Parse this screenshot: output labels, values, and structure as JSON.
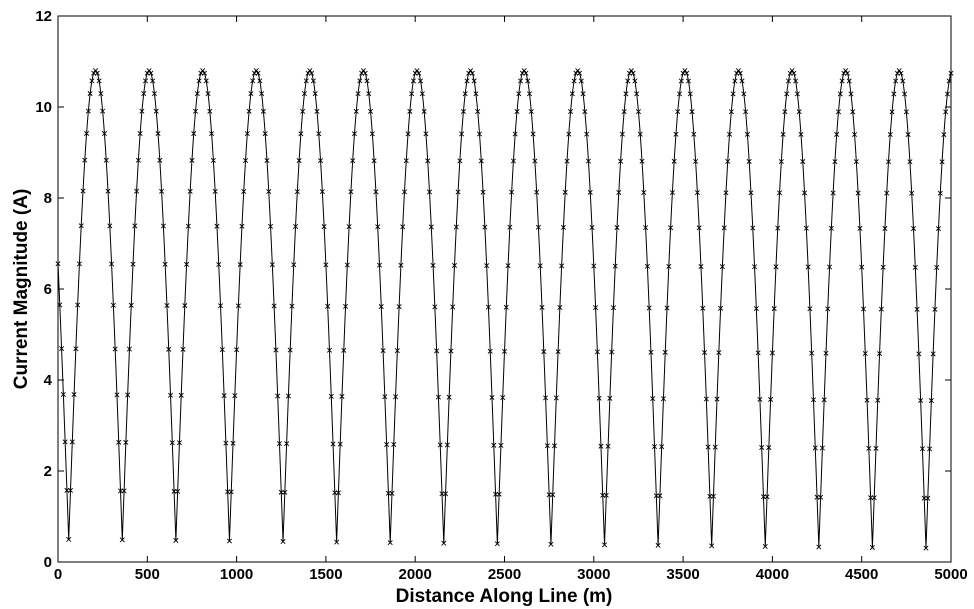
{
  "chart_data": {
    "type": "line",
    "title": "",
    "xlabel": "Distance Along Line (m)",
    "ylabel": "Current Magnitude (A)",
    "xlim": [
      0,
      5000
    ],
    "ylim": [
      0,
      12
    ],
    "x_ticks": [
      0,
      500,
      1000,
      1500,
      2000,
      2500,
      3000,
      3500,
      4000,
      4500,
      5000
    ],
    "y_ticks": [
      0,
      2,
      4,
      6,
      8,
      10,
      12
    ],
    "x_tick_labels": [
      "0",
      "500",
      "1000",
      "1500",
      "2000",
      "2500",
      "3000",
      "3500",
      "4000",
      "4500",
      "5000"
    ],
    "y_tick_labels": [
      "0",
      "2",
      "4",
      "6",
      "8",
      "10",
      "12"
    ],
    "grid": false,
    "legend": "none",
    "series": [
      {
        "style": "solid line",
        "color": "#000000",
        "description_values": {
          "peak_value": 10.8,
          "minimum_value_start": 0.5,
          "minimum_value_end": 0.3,
          "period_m": 300,
          "first_peak_x": 210,
          "first_minimum_x": 60,
          "start_value": 5.5
        }
      },
      {
        "style": "x markers",
        "color": "#000000",
        "marker_spacing_m": 10
      }
    ],
    "peaks_x": [
      210,
      510,
      810,
      1110,
      1410,
      1710,
      2010,
      2310,
      2610,
      2910,
      3210,
      3510,
      3810,
      4110,
      4410,
      4710,
      5000
    ],
    "minima_x": [
      60,
      360,
      660,
      960,
      1260,
      1560,
      1860,
      2160,
      2460,
      2760,
      3060,
      3360,
      3660,
      3960,
      4260,
      4560,
      4860
    ]
  }
}
